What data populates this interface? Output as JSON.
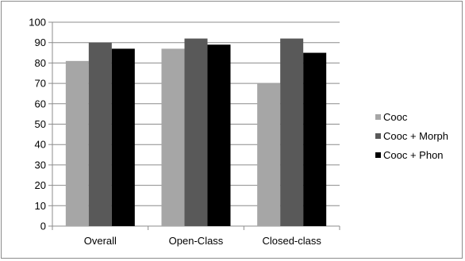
{
  "chart_data": {
    "type": "bar",
    "categories": [
      "Overall",
      "Open-Class",
      "Closed-class"
    ],
    "series": [
      {
        "name": "Cooc",
        "values": [
          81,
          87,
          70
        ],
        "color": "#a6a6a6"
      },
      {
        "name": "Cooc + Morph",
        "values": [
          90,
          92,
          92
        ],
        "color": "#595959"
      },
      {
        "name": "Cooc + Phon",
        "values": [
          87,
          89,
          85
        ],
        "color": "#000000"
      }
    ],
    "ylim": [
      0,
      100
    ],
    "yticks": [
      0,
      10,
      20,
      30,
      40,
      50,
      60,
      70,
      80,
      90,
      100
    ],
    "grid": true,
    "legend": "right"
  }
}
